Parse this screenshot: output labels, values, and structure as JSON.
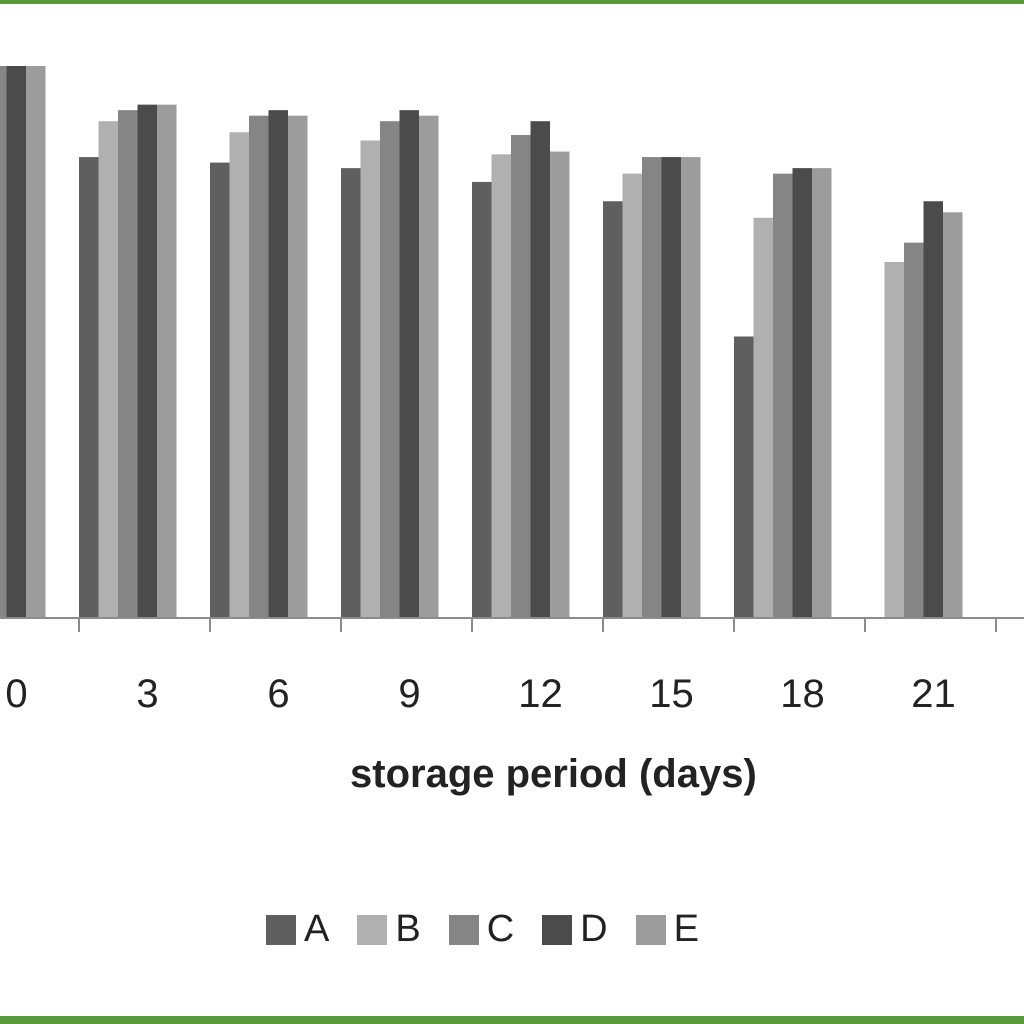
{
  "chart_data": {
    "type": "bar",
    "xlabel": "storage period (days)",
    "categories": [
      "0",
      "3",
      "6",
      "9",
      "12",
      "15",
      "18",
      "21"
    ],
    "series": [
      {
        "name": "A",
        "color": "#5f5f5f",
        "values": [
          100,
          83.5,
          82.5,
          81.5,
          79,
          75.5,
          51,
          null
        ]
      },
      {
        "name": "B",
        "color": "#b0b0b0",
        "values": [
          100,
          90,
          88,
          86.5,
          84,
          80.5,
          72.5,
          64.5
        ]
      },
      {
        "name": "C",
        "color": "#858585",
        "values": [
          100,
          92,
          91,
          90,
          87.5,
          83.5,
          80.5,
          68
        ]
      },
      {
        "name": "D",
        "color": "#4b4b4b",
        "values": [
          100,
          93,
          92,
          92,
          90,
          83.5,
          81.5,
          75.5
        ]
      },
      {
        "name": "E",
        "color": "#9c9c9c",
        "values": [
          100,
          93,
          91,
          91,
          84.5,
          83.5,
          81.5,
          73.5
        ]
      }
    ],
    "ylim": [
      0,
      100
    ],
    "grid": false,
    "legend_position": "bottom"
  }
}
